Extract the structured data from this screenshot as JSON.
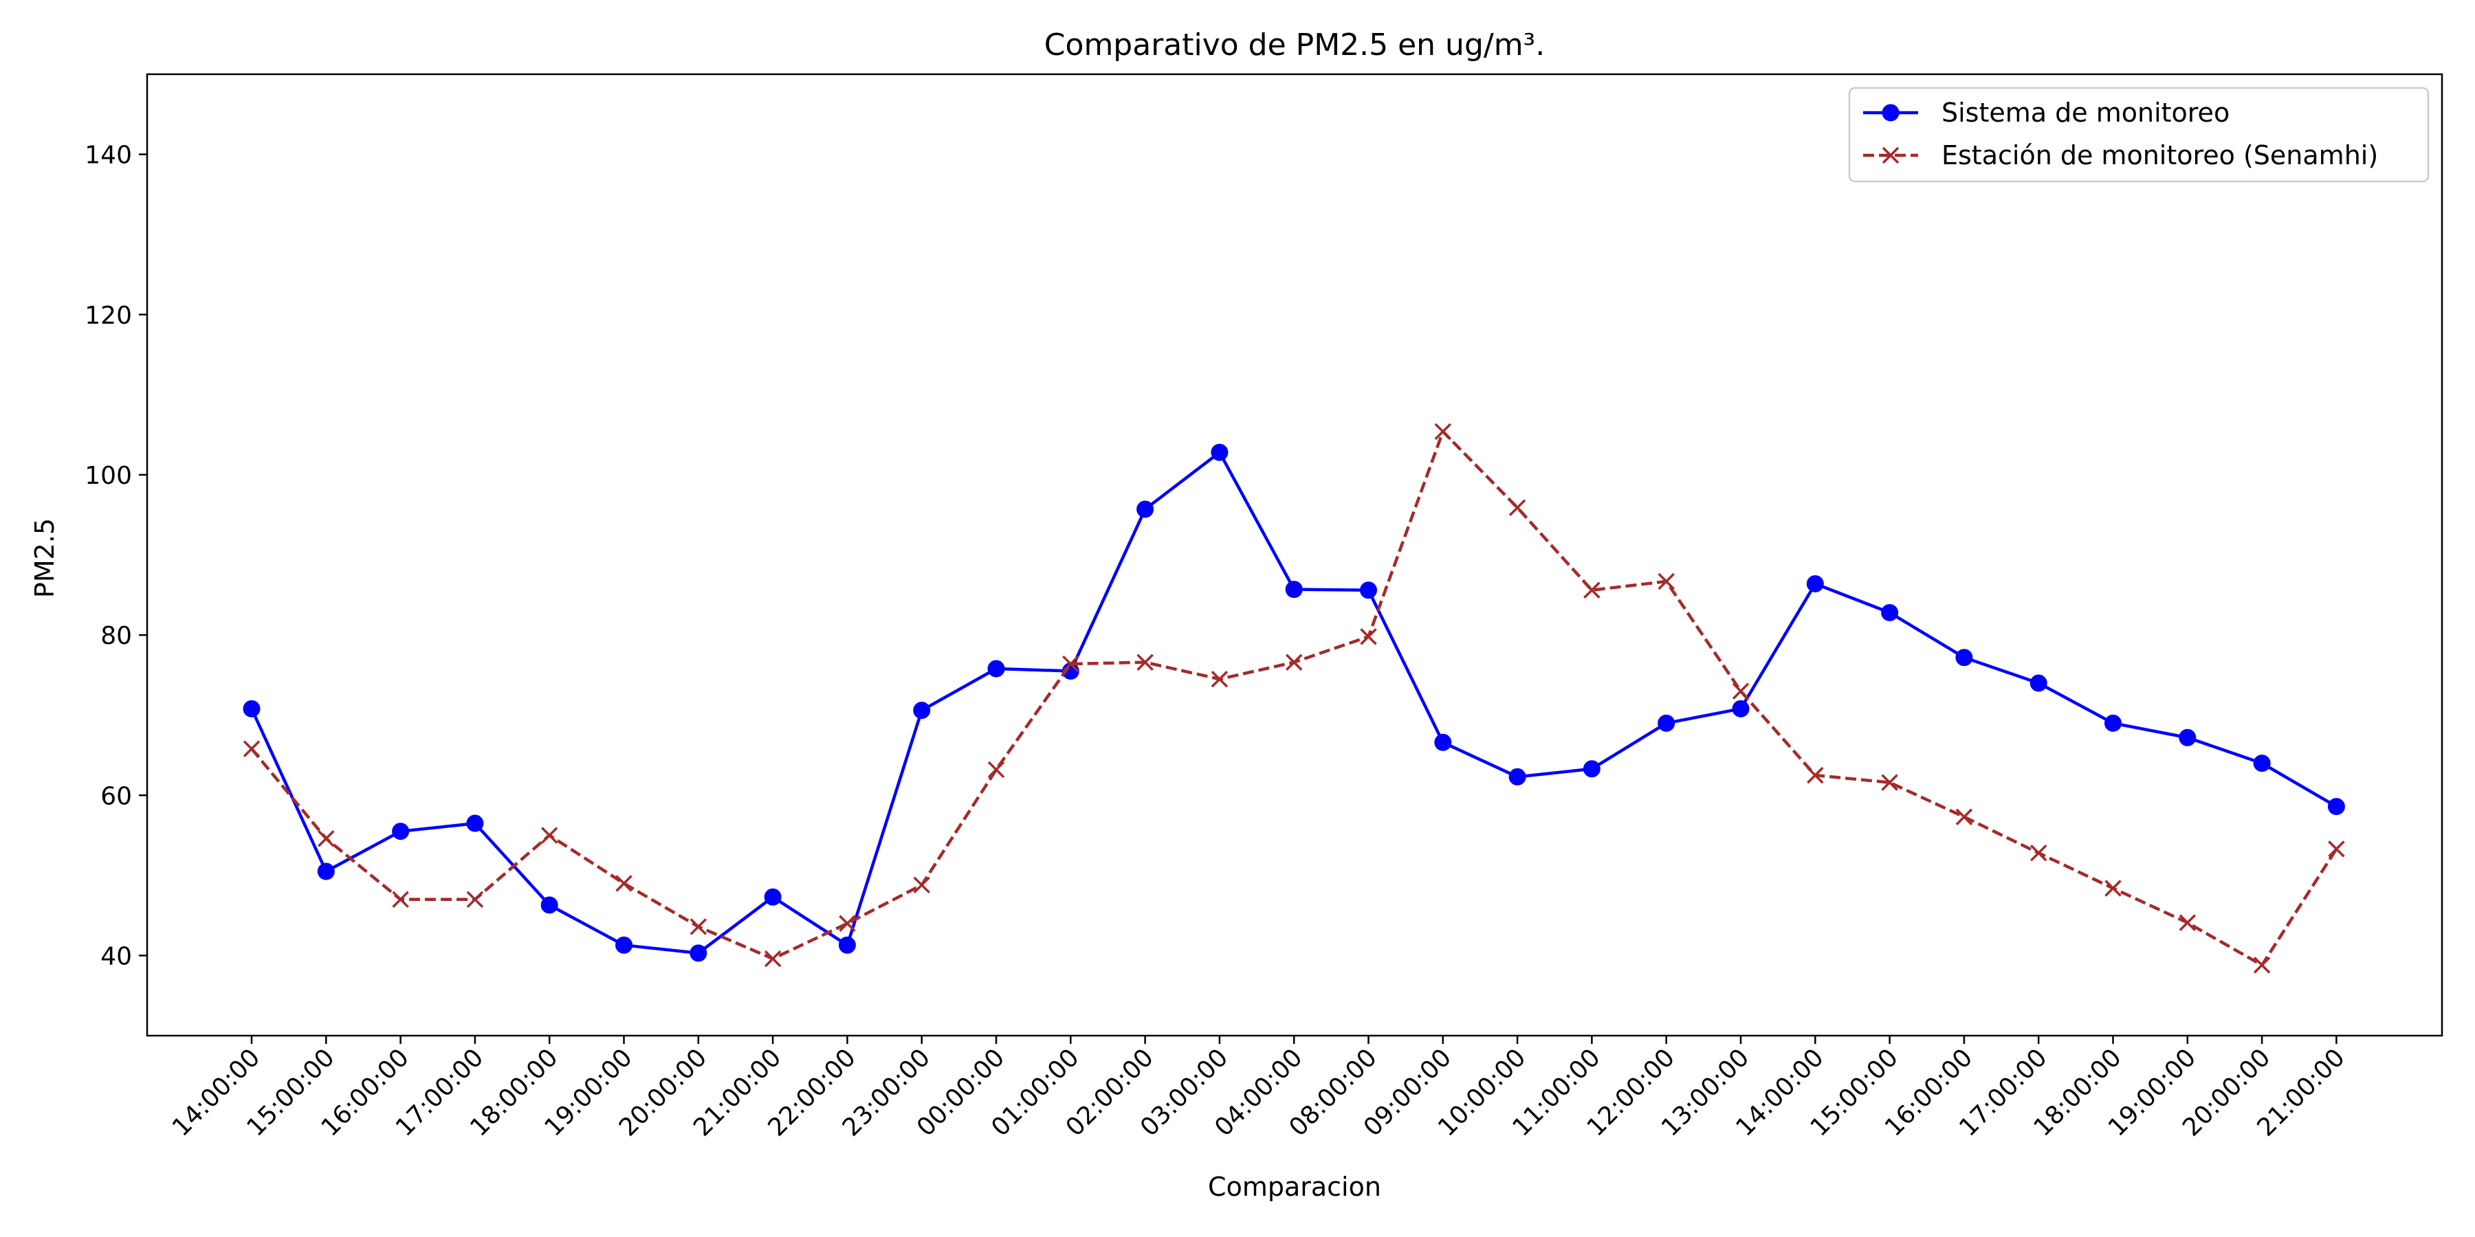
{
  "chart_data": {
    "type": "line",
    "title": "Comparativo de PM2.5 en ug/m³.",
    "xlabel": "Comparacion",
    "ylabel": "PM2.5",
    "ylim": [
      30,
      150
    ],
    "yticks": [
      40,
      60,
      80,
      100,
      120,
      140
    ],
    "grid": false,
    "legend_position": "top-right",
    "categories": [
      "14:00:00",
      "15:00:00",
      "16:00:00",
      "17:00:00",
      "18:00:00",
      "19:00:00",
      "20:00:00",
      "21:00:00",
      "22:00:00",
      "23:00:00",
      "00:00:00",
      "01:00:00",
      "02:00:00",
      "03:00:00",
      "04:00:00",
      "08:00:00",
      "09:00:00",
      "10:00:00",
      "11:00:00",
      "12:00:00",
      "13:00:00",
      "14:00:00",
      "15:00:00",
      "16:00:00",
      "17:00:00",
      "18:00:00",
      "19:00:00",
      "20:00:00",
      "21:00:00"
    ],
    "series": [
      {
        "name": "Sistema de monitoreo",
        "color": "#0000ff",
        "line_style": "solid",
        "marker": "circle",
        "values": [
          70.8,
          50.5,
          55.5,
          56.5,
          46.3,
          41.3,
          40.3,
          47.3,
          41.3,
          70.6,
          75.8,
          75.5,
          95.7,
          102.8,
          85.7,
          85.6,
          66.6,
          62.3,
          63.3,
          69.0,
          70.8,
          86.4,
          82.8,
          77.2,
          74.0,
          69.0,
          67.2,
          64.0,
          58.6
        ]
      },
      {
        "name": "Estación de monitoreo (Senamhi)",
        "color": "#a52a2a",
        "line_style": "dashed",
        "marker": "x",
        "values": [
          65.8,
          54.6,
          47.0,
          47.0,
          55.0,
          49.0,
          43.6,
          39.6,
          44.0,
          48.8,
          63.2,
          76.4,
          76.6,
          74.5,
          76.6,
          79.8,
          105.4,
          95.9,
          85.6,
          86.7,
          73.0,
          62.5,
          61.6,
          57.3,
          52.8,
          48.4,
          44.1,
          38.8,
          53.3
        ]
      }
    ]
  }
}
